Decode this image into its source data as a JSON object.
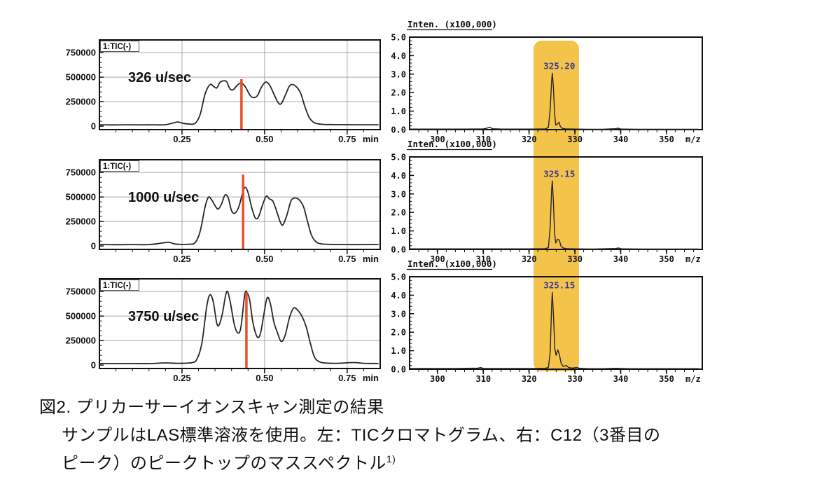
{
  "caption": {
    "line1": "図2. プリカーサーイオンスキャン測定の結果",
    "line2": "サンプルはLAS標準溶液を使用。左：TICクロマトグラム、右：C12（3番目の",
    "line3": "ピーク）のピークトップのマススペクトル",
    "line3_superscript": "1)"
  },
  "colors": {
    "trace": "#262626",
    "frame": "#111111",
    "grid": "#a8a8a8",
    "marker_line": "#e8502b",
    "highlight_band": "#f4c34a",
    "peak_label": "#3b3b94",
    "axis_text": "#111111"
  },
  "highlight_band": {
    "mz_range": [
      321,
      331
    ],
    "applies_to": "mass-spectra"
  },
  "chart_data": [
    {
      "id": "tic-1",
      "kind": "tic",
      "row": 0,
      "type": "line",
      "trace_label": "1:TIC(-)",
      "annotation": "326 u/sec",
      "xlim": [
        0,
        0.85
      ],
      "ylim": [
        -35000,
        880000
      ],
      "xticks": [
        0.25,
        0.5,
        0.75
      ],
      "xtick_labels": [
        "0.25",
        "0.50",
        "0.75"
      ],
      "x_minor_step": 0.05,
      "x_unit": "min",
      "yticks": [
        0,
        250000,
        500000,
        750000
      ],
      "ytick_labels": [
        "0",
        "250000",
        "500000",
        "750000"
      ],
      "y_minor_step": 50000,
      "grid": true,
      "marker": {
        "x": 0.43,
        "top": 480000
      },
      "annotation_x": 0.087,
      "annotation_y": 500000,
      "points": [
        [
          0.0,
          14000
        ],
        [
          0.04,
          13000
        ],
        [
          0.08,
          14000
        ],
        [
          0.12,
          13500
        ],
        [
          0.16,
          14000
        ],
        [
          0.2,
          15000
        ],
        [
          0.235,
          42000
        ],
        [
          0.25,
          32000
        ],
        [
          0.27,
          22000
        ],
        [
          0.29,
          30000
        ],
        [
          0.305,
          120000
        ],
        [
          0.32,
          330000
        ],
        [
          0.335,
          425000
        ],
        [
          0.345,
          408000
        ],
        [
          0.355,
          390000
        ],
        [
          0.365,
          448000
        ],
        [
          0.375,
          462000
        ],
        [
          0.385,
          455000
        ],
        [
          0.395,
          382000
        ],
        [
          0.405,
          372000
        ],
        [
          0.418,
          420000
        ],
        [
          0.43,
          440000
        ],
        [
          0.442,
          400000
        ],
        [
          0.455,
          320000
        ],
        [
          0.465,
          292000
        ],
        [
          0.478,
          310000
        ],
        [
          0.49,
          395000
        ],
        [
          0.503,
          450000
        ],
        [
          0.515,
          420000
        ],
        [
          0.528,
          330000
        ],
        [
          0.54,
          245000
        ],
        [
          0.55,
          228000
        ],
        [
          0.562,
          310000
        ],
        [
          0.575,
          408000
        ],
        [
          0.585,
          425000
        ],
        [
          0.598,
          395000
        ],
        [
          0.61,
          330000
        ],
        [
          0.622,
          200000
        ],
        [
          0.635,
          90000
        ],
        [
          0.648,
          40000
        ],
        [
          0.66,
          25000
        ],
        [
          0.68,
          18000
        ],
        [
          0.71,
          16000
        ],
        [
          0.75,
          15000
        ],
        [
          0.8,
          14000
        ],
        [
          0.845,
          14000
        ]
      ]
    },
    {
      "id": "ms-1",
      "kind": "ms",
      "row": 0,
      "type": "line",
      "axis_title": "Inten. (x100,000)",
      "xlim": [
        293.9,
        357.8
      ],
      "ylim": [
        0,
        5
      ],
      "xticks": [
        300,
        310,
        320,
        330,
        340,
        350
      ],
      "xtick_labels": [
        "300",
        "310",
        "320",
        "330",
        "340",
        "350"
      ],
      "x_minor_step": 2,
      "x_unit": "m/z",
      "yticks": [
        0,
        1,
        2,
        3,
        4,
        5
      ],
      "ytick_labels": [
        "0.0",
        "1.0",
        "2.0",
        "3.0",
        "4.0",
        "5.0"
      ],
      "y_minor_step": 0.2,
      "grid": false,
      "peak_label": {
        "text": "325.20",
        "x": 325.05,
        "y": 3.05
      },
      "points": [
        [
          294,
          0.03
        ],
        [
          298,
          0.03
        ],
        [
          302,
          0.03
        ],
        [
          306,
          0.03
        ],
        [
          310,
          0.04
        ],
        [
          310.8,
          0.08
        ],
        [
          311.4,
          0.13
        ],
        [
          312,
          0.05
        ],
        [
          314,
          0.03
        ],
        [
          318,
          0.03
        ],
        [
          321,
          0.03
        ],
        [
          323.6,
          0.04
        ],
        [
          324.2,
          0.12
        ],
        [
          324.6,
          1.1
        ],
        [
          324.9,
          2.6
        ],
        [
          325.05,
          3.05
        ],
        [
          325.3,
          2.3
        ],
        [
          325.55,
          0.9
        ],
        [
          325.8,
          0.25
        ],
        [
          326.1,
          0.28
        ],
        [
          326.5,
          0.4
        ],
        [
          326.8,
          0.18
        ],
        [
          327.2,
          0.07
        ],
        [
          328,
          0.04
        ],
        [
          330,
          0.03
        ],
        [
          333,
          0.02
        ],
        [
          336,
          0.02
        ],
        [
          338.8,
          0.05
        ],
        [
          339.4,
          0.08
        ],
        [
          340,
          0.03
        ],
        [
          344,
          0.02
        ],
        [
          348,
          0.02
        ],
        [
          352,
          0.02
        ],
        [
          357,
          0.02
        ]
      ]
    },
    {
      "id": "tic-2",
      "kind": "tic",
      "row": 1,
      "type": "line",
      "trace_label": "1:TIC(-)",
      "annotation": "1000 u/sec",
      "xlim": [
        0,
        0.85
      ],
      "ylim": [
        -35000,
        880000
      ],
      "xticks": [
        0.25,
        0.5,
        0.75
      ],
      "xtick_labels": [
        "0.25",
        "0.50",
        "0.75"
      ],
      "x_minor_step": 0.05,
      "x_unit": "min",
      "yticks": [
        0,
        250000,
        500000,
        750000
      ],
      "ytick_labels": [
        "0",
        "250000",
        "500000",
        "750000"
      ],
      "y_minor_step": 50000,
      "grid": true,
      "marker": {
        "x": 0.435,
        "top": 728000
      },
      "annotation_x": 0.087,
      "annotation_y": 500000,
      "points": [
        [
          0.0,
          14000
        ],
        [
          0.05,
          13000
        ],
        [
          0.1,
          14000
        ],
        [
          0.15,
          14000
        ],
        [
          0.19,
          30000
        ],
        [
          0.21,
          38000
        ],
        [
          0.23,
          20000
        ],
        [
          0.27,
          18000
        ],
        [
          0.29,
          35000
        ],
        [
          0.305,
          150000
        ],
        [
          0.32,
          400000
        ],
        [
          0.33,
          498000
        ],
        [
          0.34,
          470000
        ],
        [
          0.352,
          400000
        ],
        [
          0.36,
          378000
        ],
        [
          0.37,
          430000
        ],
        [
          0.38,
          520000
        ],
        [
          0.39,
          490000
        ],
        [
          0.4,
          360000
        ],
        [
          0.41,
          335000
        ],
        [
          0.422,
          400000
        ],
        [
          0.435,
          560000
        ],
        [
          0.442,
          598000
        ],
        [
          0.45,
          545000
        ],
        [
          0.462,
          380000
        ],
        [
          0.472,
          285000
        ],
        [
          0.482,
          300000
        ],
        [
          0.495,
          430000
        ],
        [
          0.505,
          508000
        ],
        [
          0.515,
          480000
        ],
        [
          0.525,
          458000
        ],
        [
          0.535,
          370000
        ],
        [
          0.548,
          240000
        ],
        [
          0.556,
          218000
        ],
        [
          0.568,
          320000
        ],
        [
          0.58,
          460000
        ],
        [
          0.592,
          490000
        ],
        [
          0.605,
          470000
        ],
        [
          0.618,
          400000
        ],
        [
          0.63,
          250000
        ],
        [
          0.642,
          110000
        ],
        [
          0.655,
          45000
        ],
        [
          0.67,
          22000
        ],
        [
          0.7,
          16000
        ],
        [
          0.75,
          14000
        ],
        [
          0.8,
          14000
        ],
        [
          0.845,
          14000
        ]
      ]
    },
    {
      "id": "ms-2",
      "kind": "ms",
      "row": 1,
      "type": "line",
      "axis_title": "Inten. (x100,000)",
      "xlim": [
        293.9,
        357.8
      ],
      "ylim": [
        0,
        5
      ],
      "xticks": [
        300,
        310,
        320,
        330,
        340,
        350
      ],
      "xtick_labels": [
        "300",
        "310",
        "320",
        "330",
        "340",
        "350"
      ],
      "x_minor_step": 2,
      "x_unit": "m/z",
      "yticks": [
        0,
        1,
        2,
        3,
        4,
        5
      ],
      "ytick_labels": [
        "0.0",
        "1.0",
        "2.0",
        "3.0",
        "4.0",
        "5.0"
      ],
      "y_minor_step": 0.2,
      "grid": false,
      "peak_label": {
        "text": "325.15",
        "x": 325.05,
        "y": 3.7
      },
      "points": [
        [
          294,
          0.03
        ],
        [
          300,
          0.03
        ],
        [
          305,
          0.03
        ],
        [
          310,
          0.03
        ],
        [
          315,
          0.03
        ],
        [
          320,
          0.03
        ],
        [
          323.5,
          0.04
        ],
        [
          324.2,
          0.1
        ],
        [
          324.6,
          1.2
        ],
        [
          324.9,
          3.2
        ],
        [
          325.05,
          3.7
        ],
        [
          325.3,
          2.6
        ],
        [
          325.55,
          0.9
        ],
        [
          325.8,
          0.35
        ],
        [
          326.2,
          0.55
        ],
        [
          326.6,
          0.5
        ],
        [
          326.9,
          0.2
        ],
        [
          327.4,
          0.08
        ],
        [
          328.2,
          0.04
        ],
        [
          330,
          0.03
        ],
        [
          334,
          0.02
        ],
        [
          338.9,
          0.05
        ],
        [
          339.5,
          0.08
        ],
        [
          340.2,
          0.03
        ],
        [
          345,
          0.02
        ],
        [
          350,
          0.02
        ],
        [
          357,
          0.02
        ]
      ]
    },
    {
      "id": "tic-3",
      "kind": "tic",
      "row": 2,
      "type": "line",
      "trace_label": "1:TIC(-)",
      "annotation": "3750 u/sec",
      "xlim": [
        0,
        0.85
      ],
      "ylim": [
        -35000,
        880000
      ],
      "xticks": [
        0.25,
        0.5,
        0.75
      ],
      "xtick_labels": [
        "0.25",
        "0.50",
        "0.75"
      ],
      "x_minor_step": 0.05,
      "x_unit": "min",
      "yticks": [
        0,
        250000,
        500000,
        750000
      ],
      "ytick_labels": [
        "0",
        "250000",
        "500000",
        "750000"
      ],
      "y_minor_step": 50000,
      "grid": true,
      "marker": {
        "x": 0.445,
        "top": 742000
      },
      "annotation_x": 0.087,
      "annotation_y": 500000,
      "points": [
        [
          0.0,
          16000
        ],
        [
          0.05,
          15000
        ],
        [
          0.1,
          16000
        ],
        [
          0.15,
          15000
        ],
        [
          0.2,
          22000
        ],
        [
          0.24,
          18000
        ],
        [
          0.28,
          25000
        ],
        [
          0.295,
          60000
        ],
        [
          0.31,
          220000
        ],
        [
          0.325,
          600000
        ],
        [
          0.335,
          718000
        ],
        [
          0.345,
          640000
        ],
        [
          0.355,
          430000
        ],
        [
          0.362,
          408000
        ],
        [
          0.372,
          520000
        ],
        [
          0.385,
          748000
        ],
        [
          0.395,
          660000
        ],
        [
          0.408,
          420000
        ],
        [
          0.418,
          330000
        ],
        [
          0.428,
          380000
        ],
        [
          0.44,
          720000
        ],
        [
          0.447,
          738000
        ],
        [
          0.455,
          660000
        ],
        [
          0.465,
          430000
        ],
        [
          0.478,
          285000
        ],
        [
          0.488,
          330000
        ],
        [
          0.498,
          520000
        ],
        [
          0.508,
          688000
        ],
        [
          0.518,
          620000
        ],
        [
          0.528,
          440000
        ],
        [
          0.538,
          340000
        ],
        [
          0.55,
          242000
        ],
        [
          0.562,
          300000
        ],
        [
          0.575,
          480000
        ],
        [
          0.588,
          582000
        ],
        [
          0.6,
          560000
        ],
        [
          0.612,
          505000
        ],
        [
          0.625,
          400000
        ],
        [
          0.638,
          230000
        ],
        [
          0.65,
          90000
        ],
        [
          0.662,
          40000
        ],
        [
          0.68,
          22000
        ],
        [
          0.72,
          18000
        ],
        [
          0.77,
          26000
        ],
        [
          0.8,
          18000
        ],
        [
          0.845,
          16000
        ]
      ]
    },
    {
      "id": "ms-3",
      "kind": "ms",
      "row": 2,
      "type": "line",
      "axis_title": "Inten. (x100,000)",
      "xlim": [
        293.9,
        357.8
      ],
      "ylim": [
        0,
        5
      ],
      "xticks": [
        300,
        310,
        320,
        330,
        340,
        350
      ],
      "xtick_labels": [
        "300",
        "310",
        "320",
        "330",
        "340",
        "350"
      ],
      "x_minor_step": 2,
      "x_unit": "m/z",
      "yticks": [
        0,
        1,
        2,
        3,
        4,
        5
      ],
      "ytick_labels": [
        "0.0",
        "1.0",
        "2.0",
        "3.0",
        "4.0",
        "5.0"
      ],
      "y_minor_step": 0.2,
      "grid": false,
      "peak_label": {
        "text": "325.15",
        "x": 325.05,
        "y": 4.15
      },
      "points": [
        [
          294,
          0.04
        ],
        [
          299,
          0.04
        ],
        [
          304,
          0.04
        ],
        [
          308.8,
          0.06
        ],
        [
          309.4,
          0.09
        ],
        [
          310,
          0.04
        ],
        [
          314,
          0.04
        ],
        [
          318,
          0.04
        ],
        [
          321,
          0.04
        ],
        [
          323.5,
          0.05
        ],
        [
          324.2,
          0.1
        ],
        [
          324.6,
          0.9
        ],
        [
          324.9,
          3.4
        ],
        [
          325.05,
          4.15
        ],
        [
          325.3,
          3.0
        ],
        [
          325.6,
          1.1
        ],
        [
          325.9,
          0.75
        ],
        [
          326.25,
          1.05
        ],
        [
          326.6,
          0.8
        ],
        [
          326.95,
          0.35
        ],
        [
          327.4,
          0.15
        ],
        [
          328.1,
          0.2
        ],
        [
          328.6,
          0.1
        ],
        [
          329.4,
          0.06
        ],
        [
          330.4,
          0.1
        ],
        [
          331,
          0.05
        ],
        [
          333,
          0.03
        ],
        [
          336,
          0.03
        ],
        [
          339,
          0.05
        ],
        [
          342,
          0.03
        ],
        [
          346,
          0.03
        ],
        [
          350,
          0.03
        ],
        [
          357,
          0.03
        ]
      ]
    }
  ]
}
